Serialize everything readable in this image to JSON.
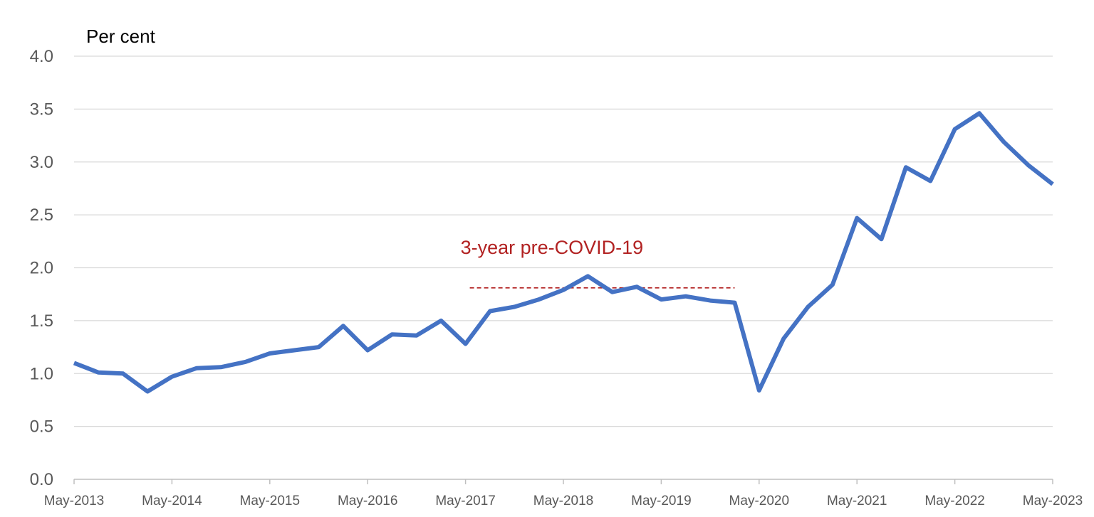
{
  "chart_data": {
    "type": "line",
    "ylabel": "Per cent",
    "ylim": [
      0,
      4
    ],
    "yticks": [
      "0.0",
      "0.5",
      "1.0",
      "1.5",
      "2.0",
      "2.5",
      "3.0",
      "3.5",
      "4.0"
    ],
    "xtick_labels": [
      "May-2013",
      "May-2014",
      "May-2015",
      "May-2016",
      "May-2017",
      "May-2018",
      "May-2019",
      "May-2020",
      "May-2021",
      "May-2022",
      "May-2023"
    ],
    "grid": true,
    "legend": "none",
    "series": [
      {
        "color": "#4472C4",
        "x": [
          "May-2013",
          "Aug-2013",
          "Nov-2013",
          "Feb-2014",
          "May-2014",
          "Aug-2014",
          "Nov-2014",
          "Feb-2015",
          "May-2015",
          "Aug-2015",
          "Nov-2015",
          "Feb-2016",
          "May-2016",
          "Aug-2016",
          "Nov-2016",
          "Feb-2017",
          "May-2017",
          "Aug-2017",
          "Nov-2017",
          "Feb-2018",
          "May-2018",
          "Aug-2018",
          "Nov-2018",
          "Feb-2019",
          "May-2019",
          "Aug-2019",
          "Nov-2019",
          "Feb-2020",
          "May-2020",
          "Aug-2020",
          "Nov-2020",
          "Feb-2021",
          "May-2021",
          "Aug-2021",
          "Nov-2021",
          "Feb-2022",
          "May-2022",
          "Aug-2022",
          "Nov-2022",
          "Feb-2023",
          "May-2023"
        ],
        "values": [
          1.1,
          1.01,
          1.0,
          0.83,
          0.97,
          1.05,
          1.06,
          1.11,
          1.19,
          1.22,
          1.25,
          1.45,
          1.22,
          1.37,
          1.36,
          1.5,
          1.28,
          1.59,
          1.63,
          1.7,
          1.79,
          1.92,
          1.77,
          1.82,
          1.7,
          1.73,
          1.69,
          1.67,
          0.84,
          1.33,
          1.63,
          1.84,
          2.47,
          2.27,
          2.95,
          2.82,
          3.31,
          3.46,
          3.19,
          2.97,
          2.79
        ]
      }
    ],
    "annotations": [
      {
        "text": "3-year pre-COVID-19",
        "color": "#B22222",
        "line_value": 1.81,
        "line_from": "May-2017",
        "line_to": "Feb-2020",
        "line_style": "dashed"
      }
    ]
  }
}
